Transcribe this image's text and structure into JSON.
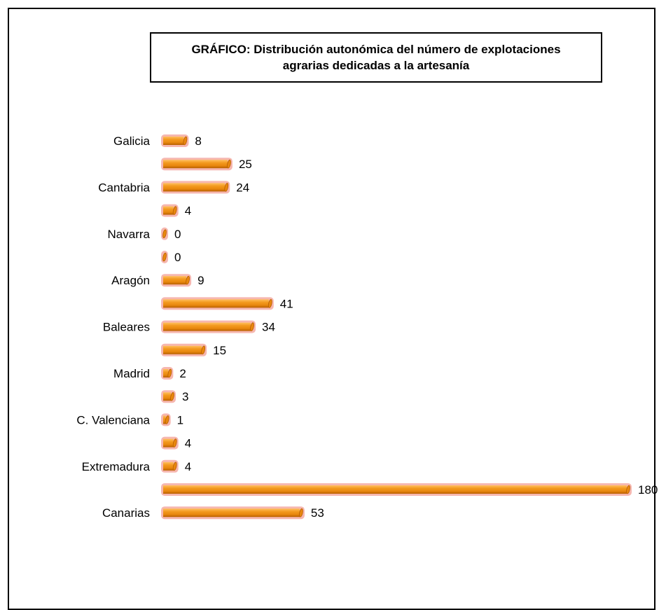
{
  "chart_data": {
    "type": "bar",
    "orientation": "horizontal",
    "title": "GRÁFICO: Distribución autonómica del número de explotaciones\nagrarias dedicadas a la artesanía",
    "categories": [
      "Galicia",
      "",
      "Cantabria",
      "",
      "Navarra",
      "",
      "Aragón",
      "",
      "Baleares",
      "",
      "Madrid",
      "",
      "C. Valenciana",
      "",
      "Extremadura",
      "",
      "Canarias"
    ],
    "values": [
      8,
      25,
      24,
      4,
      0,
      0,
      9,
      41,
      34,
      15,
      2,
      3,
      1,
      4,
      4,
      180,
      53
    ],
    "value_labels": [
      "8",
      "25",
      "24",
      "4",
      "0",
      "0",
      "9",
      "41",
      "34",
      "15",
      "2",
      "3",
      "1",
      "4",
      "4",
      "180",
      "53"
    ],
    "xlim": [
      0,
      180
    ],
    "grid": false,
    "legend": "none",
    "colors": {
      "bar": "#e8870e",
      "bar_dark": "#b85f00",
      "bar_light": "#ffc060",
      "halo": "#f6b7b0"
    }
  }
}
